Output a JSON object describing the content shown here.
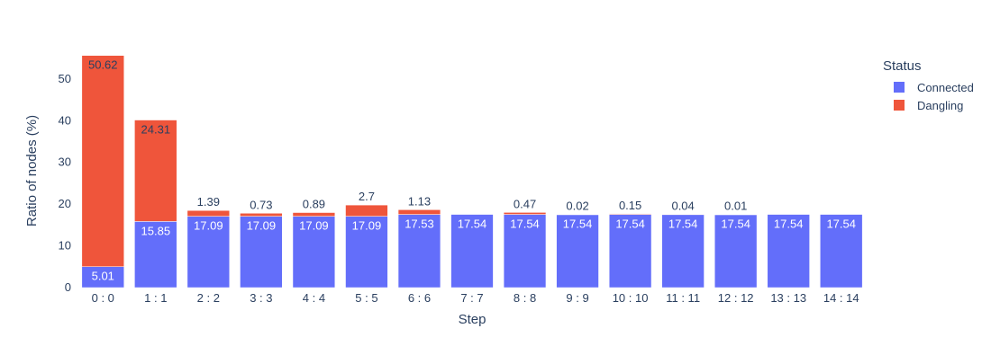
{
  "chart_data": {
    "type": "bar",
    "stacked": true,
    "title": "",
    "xlabel": "Step",
    "ylabel": "Ratio of nodes (%)",
    "ylim": [
      0,
      56
    ],
    "yticks": [
      0,
      10,
      20,
      30,
      40,
      50
    ],
    "grid": false,
    "legend": {
      "title": "Status",
      "position": "top-right"
    },
    "categories": [
      "0 : 0",
      "1 : 1",
      "2 : 2",
      "3 : 3",
      "4 : 4",
      "5 : 5",
      "6 : 6",
      "7 : 7",
      "8 : 8",
      "9 : 9",
      "10 : 10",
      "11 : 11",
      "12 : 12",
      "13 : 13",
      "14 : 14"
    ],
    "series": [
      {
        "name": "Connected",
        "color": "#636efa",
        "values": [
          5.01,
          15.85,
          17.09,
          17.09,
          17.09,
          17.09,
          17.53,
          17.54,
          17.54,
          17.54,
          17.54,
          17.54,
          17.54,
          17.54,
          17.54
        ],
        "labels": [
          "5.01",
          "15.85",
          "17.09",
          "17.09",
          "17.09",
          "17.09",
          "17.53",
          "17.54",
          "17.54",
          "17.54",
          "17.54",
          "17.54",
          "17.54",
          "17.54",
          "17.54"
        ]
      },
      {
        "name": "Dangling",
        "color": "#ef553b",
        "values": [
          50.62,
          24.31,
          1.39,
          0.73,
          0.89,
          2.7,
          1.13,
          0,
          0.47,
          0.02,
          0.15,
          0.04,
          0.01,
          0,
          0
        ],
        "labels": [
          "50.62",
          "24.31",
          "1.39",
          "0.73",
          "0.89",
          "2.7",
          "1.13",
          "",
          "0.47",
          "0.02",
          "0.15",
          "0.04",
          "0.01",
          "",
          ""
        ]
      }
    ]
  }
}
